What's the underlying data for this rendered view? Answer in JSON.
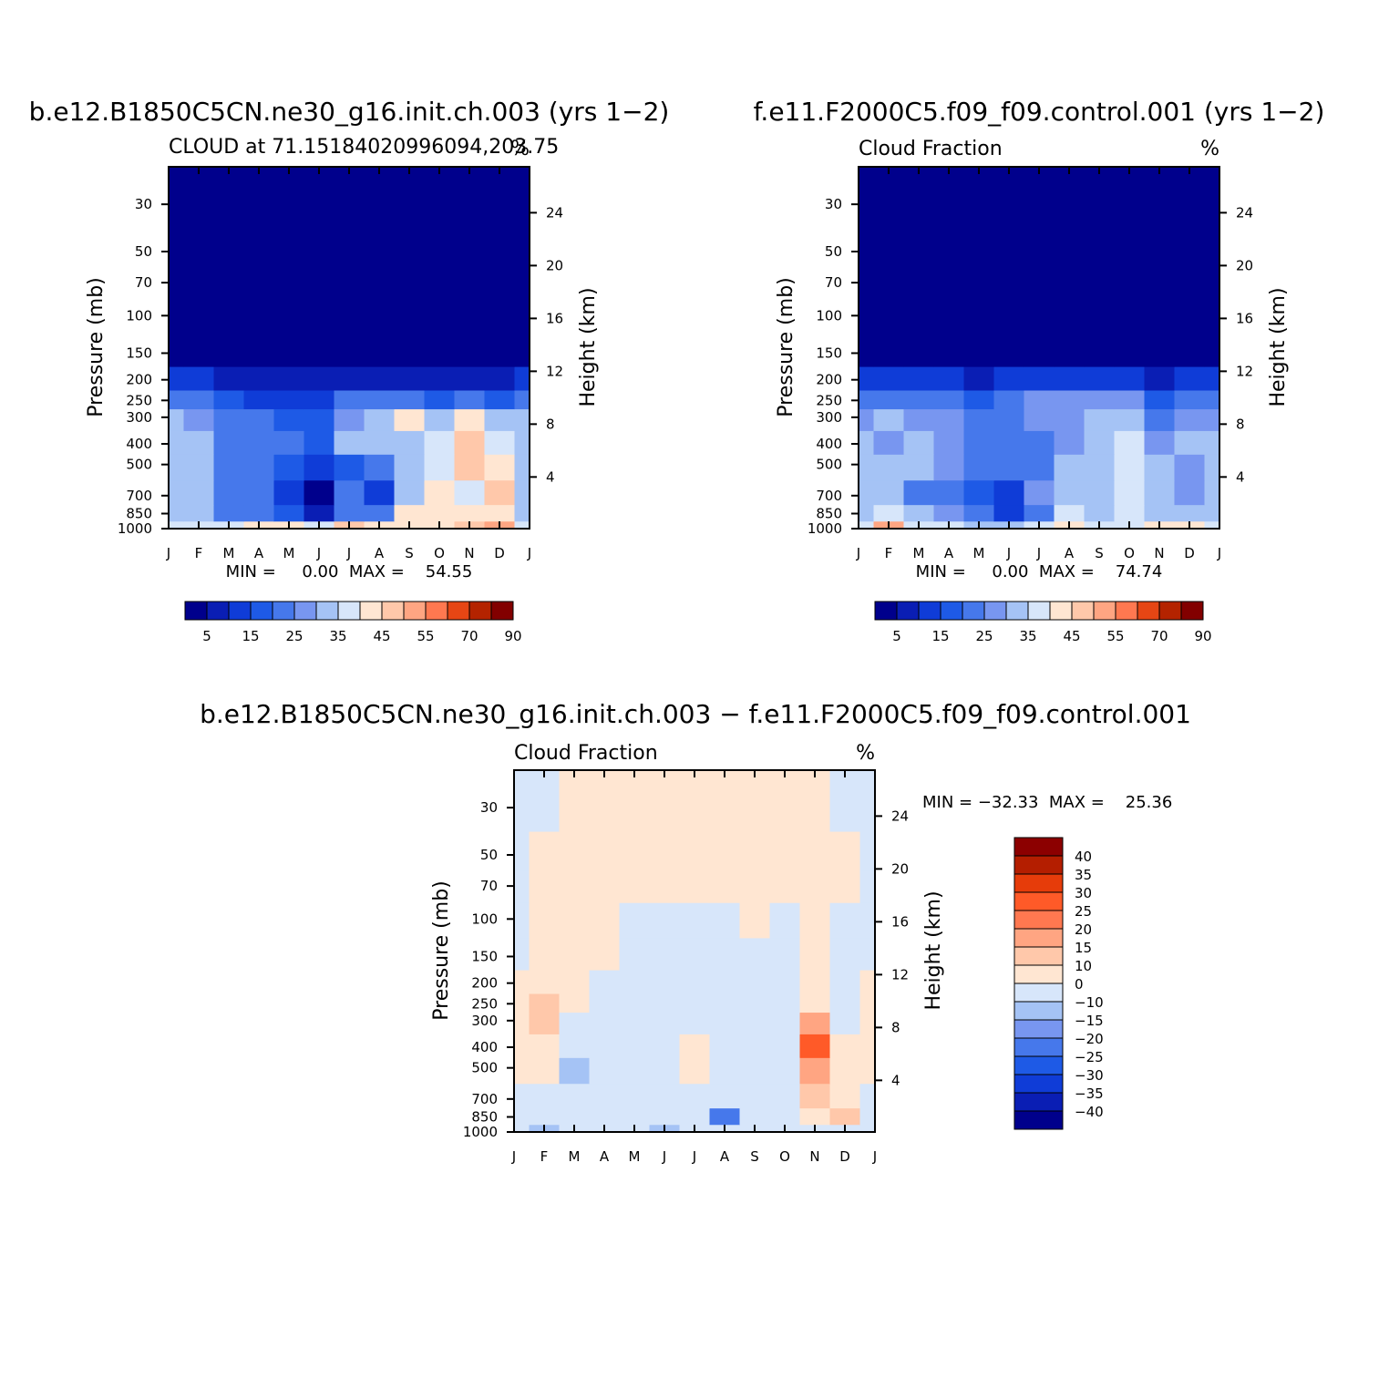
{
  "colors": {
    "upper_palette": [
      "#00008c",
      "#0a1eb4",
      "#0f3cd7",
      "#1e5ae6",
      "#4678eb",
      "#7896f0",
      "#a5c3f5",
      "#d7e6fa",
      "#ffe6d2",
      "#ffc8aa",
      "#ffa582",
      "#ff7850",
      "#e64614",
      "#b42300",
      "#820000"
    ],
    "diff_palette": [
      "#00008c",
      "#0a1eb4",
      "#0f3cd7",
      "#1e5ae6",
      "#4678eb",
      "#7896f0",
      "#a5c3f5",
      "#d7e6fa",
      "#ffe6d2",
      "#ffc8aa",
      "#ffa582",
      "#ff7850",
      "#ff5a28",
      "#e63c0a",
      "#b41e00",
      "#8c0000"
    ]
  },
  "panels": [
    {
      "id": "panel1",
      "title": "b.e12.B1850C5CN.ne30_g16.init.ch.003 (yrs 1−2)",
      "left_string": "CLOUD at 71.15184020996094,203.75",
      "right_string": "%",
      "stats": "MIN =     0.00  MAX =    54.55"
    },
    {
      "id": "panel2",
      "title": "f.e11.F2000C5.f09_f09.control.001 (yrs 1−2)",
      "left_string": "Cloud Fraction",
      "right_string": "%",
      "stats": "MIN =     0.00  MAX =    74.74"
    },
    {
      "id": "panel3",
      "title": "b.e12.B1850C5CN.ne30_g16.init.ch.003 − f.e11.F2000C5.f09_f09.control.001",
      "left_string": "Cloud Fraction",
      "right_string": "%",
      "stats": "MIN = −32.33  MAX =    25.36"
    }
  ],
  "axes": {
    "ylabel_left": "Pressure (mb)",
    "ylabel_right": "Height (km)",
    "pressure_ticks": [
      "30",
      "50",
      "70",
      "100",
      "150",
      "200",
      "250",
      "300",
      "400",
      "500",
      "700",
      "850",
      "1000"
    ],
    "height_ticks": [
      "24",
      "20",
      "16",
      "12",
      "8",
      "4"
    ],
    "month_ticks": [
      "J",
      "F",
      "M",
      "A",
      "M",
      "J",
      "J",
      "A",
      "S",
      "O",
      "N",
      "D",
      "J"
    ]
  },
  "colorbars": {
    "upper_labels": [
      "5",
      "15",
      "25",
      "35",
      "45",
      "55",
      "70",
      "90"
    ],
    "diff_labels": [
      "40",
      "35",
      "30",
      "25",
      "20",
      "15",
      "10",
      "0",
      "−10",
      "−15",
      "−20",
      "−25",
      "−30",
      "−35",
      "−40"
    ]
  },
  "chart_data": [
    {
      "type": "heatmap",
      "title": "b.e12.B1850C5CN.ne30_g16.init.ch.003 (yrs 1−2)",
      "subtitle": "CLOUD at 71.15184020996094,203.75",
      "units": "%",
      "xlabel": "",
      "ylabel": "Pressure (mb)",
      "ylabel_right": "Height (km)",
      "x": [
        "J",
        "F",
        "M",
        "A",
        "M",
        "J",
        "J",
        "A",
        "S",
        "O",
        "N",
        "D",
        "J"
      ],
      "y_pressure": [
        1000,
        850,
        700,
        500,
        400,
        300,
        250,
        200,
        150,
        100,
        70,
        50,
        30
      ],
      "ylim": [
        1000,
        20
      ],
      "y_scale": "log",
      "levels": [
        5,
        10,
        15,
        20,
        25,
        30,
        35,
        40,
        45,
        50,
        55,
        60,
        70,
        80,
        90
      ],
      "z": [
        [
          36,
          37,
          38,
          44,
          42,
          38,
          46,
          42,
          42,
          44,
          46,
          54,
          36
        ],
        [
          34,
          33,
          24,
          22,
          16,
          6,
          20,
          24,
          40,
          42,
          40,
          44,
          34
        ],
        [
          33,
          30,
          24,
          22,
          14,
          4,
          20,
          12,
          34,
          40,
          36,
          46,
          33
        ],
        [
          33,
          32,
          24,
          24,
          16,
          10,
          16,
          24,
          34,
          38,
          45,
          40,
          33
        ],
        [
          32,
          30,
          24,
          24,
          20,
          15,
          30,
          30,
          34,
          36,
          45,
          36,
          32
        ],
        [
          30,
          26,
          22,
          20,
          18,
          15,
          28,
          30,
          40,
          32,
          40,
          34,
          30
        ],
        [
          22,
          22,
          18,
          14,
          14,
          14,
          20,
          22,
          22,
          18,
          24,
          18,
          22
        ],
        [
          12,
          12,
          8,
          6,
          6,
          6,
          8,
          8,
          8,
          6,
          8,
          6,
          12
        ],
        [
          2,
          2,
          2,
          1,
          1,
          1,
          1,
          2,
          1,
          1,
          1,
          1,
          2
        ],
        [
          0,
          0,
          0,
          0,
          0,
          0,
          0,
          0,
          0,
          0,
          0,
          0,
          0
        ],
        [
          0,
          0,
          0,
          0,
          0,
          0,
          0,
          0,
          0,
          0,
          0,
          0,
          0
        ],
        [
          0,
          0,
          0,
          0,
          0,
          0,
          0,
          0,
          0,
          0,
          0,
          0,
          0
        ],
        [
          0,
          0,
          0,
          0,
          0,
          0,
          0,
          0,
          0,
          0,
          0,
          0,
          0
        ]
      ],
      "min": 0.0,
      "max": 54.55
    },
    {
      "type": "heatmap",
      "title": "f.e11.F2000C5.f09_f09.control.001 (yrs 1−2)",
      "subtitle": "Cloud Fraction",
      "units": "%",
      "xlabel": "",
      "ylabel": "Pressure (mb)",
      "ylabel_right": "Height (km)",
      "x": [
        "J",
        "F",
        "M",
        "A",
        "M",
        "J",
        "J",
        "A",
        "S",
        "O",
        "N",
        "D",
        "J"
      ],
      "y_pressure": [
        1000,
        850,
        700,
        500,
        400,
        300,
        250,
        200,
        150,
        100,
        70,
        50,
        30
      ],
      "ylim": [
        1000,
        20
      ],
      "y_scale": "log",
      "levels": [
        5,
        10,
        15,
        20,
        25,
        30,
        35,
        40,
        45,
        50,
        55,
        60,
        70,
        80,
        90
      ],
      "z": [
        [
          36,
          50,
          36,
          36,
          32,
          30,
          36,
          40,
          36,
          36,
          44,
          42,
          36
        ],
        [
          33,
          38,
          30,
          26,
          20,
          14,
          20,
          38,
          34,
          36,
          34,
          30,
          33
        ],
        [
          33,
          32,
          20,
          24,
          16,
          14,
          26,
          34,
          30,
          36,
          32,
          28,
          33
        ],
        [
          30,
          30,
          34,
          26,
          20,
          22,
          20,
          30,
          32,
          38,
          30,
          28,
          30
        ],
        [
          30,
          28,
          34,
          28,
          20,
          24,
          22,
          28,
          34,
          36,
          26,
          30,
          30
        ],
        [
          28,
          30,
          26,
          26,
          22,
          24,
          26,
          28,
          34,
          34,
          22,
          26,
          28
        ],
        [
          20,
          22,
          20,
          22,
          18,
          24,
          26,
          26,
          28,
          26,
          16,
          20,
          20
        ],
        [
          10,
          12,
          10,
          10,
          8,
          12,
          14,
          14,
          12,
          12,
          8,
          10,
          10
        ],
        [
          2,
          2,
          2,
          2,
          1,
          2,
          2,
          3,
          2,
          2,
          1,
          2,
          2
        ],
        [
          0,
          0,
          0,
          0,
          0,
          0,
          0,
          0,
          0,
          0,
          0,
          0,
          0
        ],
        [
          0,
          0,
          0,
          0,
          0,
          0,
          0,
          0,
          0,
          0,
          0,
          0,
          0
        ],
        [
          0,
          0,
          0,
          0,
          0,
          0,
          0,
          0,
          0,
          0,
          0,
          0,
          0
        ],
        [
          0,
          0,
          0,
          0,
          0,
          0,
          0,
          0,
          0,
          0,
          0,
          0,
          0
        ]
      ],
      "min": 0.0,
      "max": 74.74
    },
    {
      "type": "heatmap",
      "title": "b.e12.B1850C5CN.ne30_g16.init.ch.003 − f.e11.F2000C5.f09_f09.control.001",
      "subtitle": "Cloud Fraction",
      "units": "%",
      "xlabel": "",
      "ylabel": "Pressure (mb)",
      "ylabel_right": "Height (km)",
      "x": [
        "J",
        "F",
        "M",
        "A",
        "M",
        "J",
        "J",
        "A",
        "S",
        "O",
        "N",
        "D",
        "J"
      ],
      "y_pressure": [
        1000,
        850,
        700,
        500,
        400,
        300,
        250,
        200,
        150,
        100,
        70,
        50,
        30
      ],
      "ylim": [
        1000,
        20
      ],
      "y_scale": "log",
      "levels": [
        -40,
        -35,
        -30,
        -25,
        -20,
        -15,
        -10,
        0,
        10,
        15,
        20,
        25,
        30,
        35,
        40
      ],
      "z": [
        [
          -2,
          -14,
          -6,
          -2,
          -4,
          -12,
          -6,
          -4,
          -2,
          -2,
          -2,
          -2,
          -2
        ],
        [
          -4,
          -4,
          -8,
          -2,
          -6,
          -8,
          -4,
          -24,
          -2,
          -2,
          2,
          14,
          -4
        ],
        [
          -2,
          -2,
          -2,
          -2,
          -2,
          -6,
          -4,
          -6,
          -2,
          -2,
          12,
          4,
          -2
        ],
        [
          2,
          2,
          -12,
          -2,
          -2,
          -4,
          6,
          -4,
          -2,
          -2,
          16,
          2,
          2
        ],
        [
          2,
          6,
          -10,
          -4,
          -4,
          -6,
          4,
          -2,
          -2,
          -4,
          25,
          4,
          2
        ],
        [
          2,
          14,
          -2,
          -4,
          -4,
          -10,
          -2,
          -2,
          -2,
          -6,
          18,
          -2,
          2
        ],
        [
          2,
          10,
          2,
          -2,
          -2,
          -2,
          -2,
          -4,
          -4,
          -2,
          8,
          -2,
          2
        ],
        [
          2,
          2,
          2,
          -2,
          -2,
          -2,
          -2,
          -2,
          -4,
          -2,
          4,
          -2,
          2
        ],
        [
          -2,
          2,
          2,
          2,
          -2,
          -2,
          -2,
          -2,
          -2,
          -2,
          2,
          -2,
          -2
        ],
        [
          -2,
          2,
          2,
          2,
          -2,
          -2,
          -2,
          -2,
          2,
          -2,
          2,
          -2,
          -2
        ],
        [
          -2,
          2,
          2,
          2,
          2,
          2,
          2,
          2,
          2,
          2,
          2,
          2,
          -2
        ],
        [
          -2,
          2,
          2,
          2,
          2,
          2,
          2,
          2,
          2,
          2,
          2,
          2,
          -2
        ],
        [
          -2,
          -2,
          2,
          2,
          2,
          2,
          2,
          2,
          2,
          2,
          2,
          -2,
          -2
        ]
      ],
      "min": -32.33,
      "max": 25.36
    }
  ]
}
